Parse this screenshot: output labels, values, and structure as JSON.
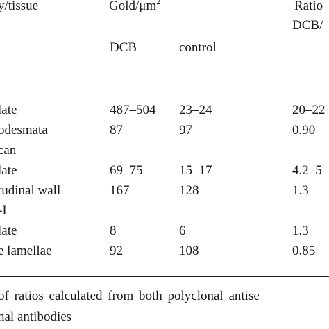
{
  "table": {
    "header": {
      "col1": "y/tissue",
      "gold_prefix": "Gold/μm",
      "gold_sup": "2",
      "ratio_top": "Ratio",
      "ratio_bottom": "DCB/",
      "dcb": "DCB",
      "control": "control"
    },
    "rows": [
      {
        "label": "late",
        "dcb": "487–504",
        "control": "23–24",
        "ratio": "20–22"
      },
      {
        "label": "odesmata",
        "dcb": "87",
        "control": "97",
        "ratio": "0.90"
      },
      {
        "label": "can",
        "dcb": "",
        "control": "",
        "ratio": ""
      },
      {
        "label": "late",
        "dcb": "69–75",
        "control": "15–17",
        "ratio": "4.2–5"
      },
      {
        "label": "tudinal wall",
        "dcb": "167",
        "control": "128",
        "ratio": "1.3"
      },
      {
        "label": "-I",
        "dcb": "",
        "control": "",
        "ratio": ""
      },
      {
        "label": "late",
        "dcb": "8",
        "control": "6",
        "ratio": "1.3"
      },
      {
        "label": "e lamellae",
        "dcb": "92",
        "control": "108",
        "ratio": "0.85"
      }
    ],
    "footnote": {
      "line1": "of ratios calculated from both polyclonal antise",
      "line2": "nal antibodies"
    }
  }
}
